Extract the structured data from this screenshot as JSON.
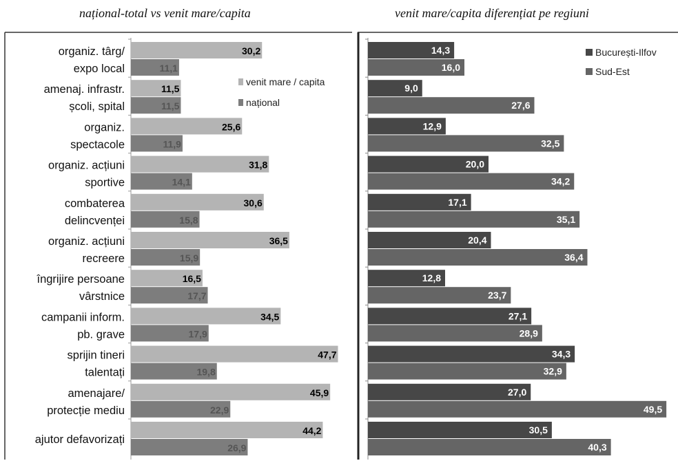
{
  "chart_data": [
    {
      "type": "bar",
      "orientation": "horizontal",
      "title": "național-total vs venit mare/capita",
      "categories": [
        [
          "organiz. târg/",
          "expo local"
        ],
        [
          "amenaj. infrastr.",
          "școli, spital"
        ],
        [
          "organiz.",
          "spectacole"
        ],
        [
          "organiz. acțiuni",
          "sportive"
        ],
        [
          "combaterea",
          "delincvenței"
        ],
        [
          "organiz. acțiuni",
          "recreere"
        ],
        [
          "îngrijire persoane",
          "vârstnice"
        ],
        [
          "campanii inform.",
          "pb. grave"
        ],
        [
          "sprijin tineri",
          "talentați"
        ],
        [
          "amenajare/",
          "protecție mediu"
        ],
        [
          "ajutor defavorizați"
        ]
      ],
      "series": [
        {
          "name": "venit mare / capita",
          "color": "#b4b4b4",
          "values": [
            30.2,
            11.5,
            25.6,
            31.8,
            30.6,
            36.5,
            16.5,
            34.5,
            47.7,
            45.9,
            44.2
          ],
          "labels": [
            "30,2",
            "11,5",
            "25,6",
            "31,8",
            "30,6",
            "36,5",
            "16,5",
            "34,5",
            "47,7",
            "45,9",
            "44,2"
          ]
        },
        {
          "name": "național",
          "color": "#7d7d7d",
          "values": [
            11.1,
            11.5,
            11.9,
            14.1,
            15.8,
            15.9,
            17.7,
            17.9,
            19.8,
            22.9,
            26.9
          ],
          "labels": [
            "11,1",
            "11,5",
            "11,9",
            "14,1",
            "15,8",
            "15,9",
            "17,7",
            "17,9",
            "19,8",
            "22,9",
            "26,9"
          ]
        }
      ],
      "legend_position": "top-right",
      "xlim": [
        0,
        50
      ],
      "grid": false
    },
    {
      "type": "bar",
      "orientation": "horizontal",
      "title": "venit mare/capita diferențiat pe regiuni",
      "series": [
        {
          "name": "București-Ilfov",
          "color": "#474747",
          "values": [
            14.3,
            9.0,
            12.9,
            20.0,
            17.1,
            20.4,
            12.8,
            27.1,
            34.3,
            27.0,
            30.5
          ],
          "labels": [
            "14,3",
            "9,0",
            "12,9",
            "20,0",
            "17,1",
            "20,4",
            "12,8",
            "27,1",
            "34,3",
            "27,0",
            "30,5"
          ]
        },
        {
          "name": "Sud-Est",
          "color": "#656565",
          "values": [
            16.0,
            27.6,
            32.5,
            34.2,
            35.1,
            36.4,
            23.7,
            28.9,
            32.9,
            49.5,
            40.3
          ],
          "labels": [
            "16,0",
            "27,6",
            "32,5",
            "34,2",
            "35,1",
            "36,4",
            "23,7",
            "28,9",
            "32,9",
            "49,5",
            "40,3"
          ]
        }
      ],
      "legend_position": "top-right",
      "xlim": [
        0,
        50
      ],
      "grid": false
    }
  ]
}
